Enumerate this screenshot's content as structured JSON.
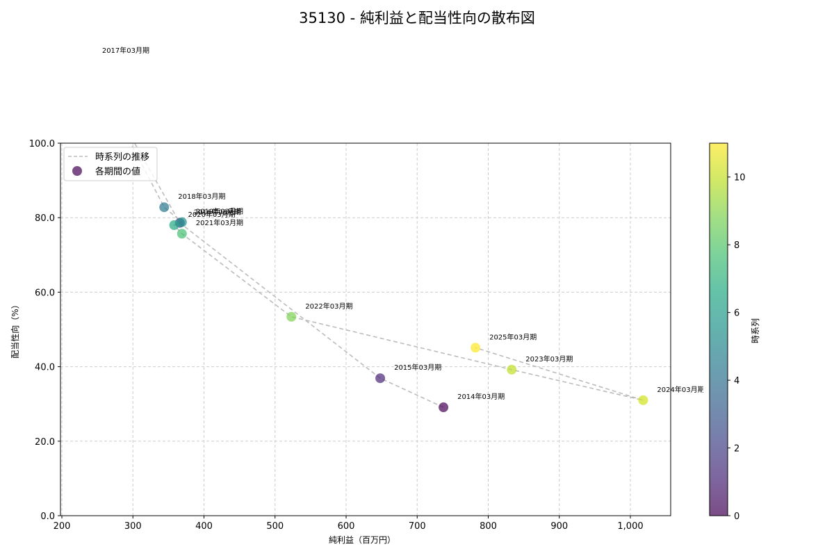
{
  "title": "35130 - 純利益と配当性向の散布図",
  "chart_data": {
    "type": "scatter",
    "title": "35130 - 純利益と配当性向の散布図",
    "xlabel": "純利益（百万円）",
    "ylabel": "配当性向（%）",
    "xlim": [
      198,
      1055
    ],
    "ylim": [
      0,
      100
    ],
    "xticks": [
      "200",
      "300",
      "400",
      "500",
      "600",
      "700",
      "800",
      "900",
      "1,000"
    ],
    "yticks": [
      "0.0",
      "20.0",
      "40.0",
      "60.0",
      "80.0",
      "100.0"
    ],
    "grid": true,
    "legend": {
      "position": "upper left",
      "entries": [
        "時系列の推移",
        "各期間の値"
      ]
    },
    "colorbar": {
      "label": "時系列",
      "ticks": [
        "0",
        "2",
        "4",
        "6",
        "8",
        "10"
      ],
      "range": [
        0,
        11
      ],
      "colormap": "viridis"
    },
    "points": [
      {
        "label": "2014年03月期",
        "x": 737,
        "y": 29.1,
        "t": 0
      },
      {
        "label": "2015年03月期",
        "x": 648,
        "y": 36.9,
        "t": 1
      },
      {
        "label": "2016年03月期",
        "x": 366,
        "y": 78.6,
        "t": 2
      },
      {
        "label": "2017年03月期",
        "x": 237,
        "y": 122.0,
        "t": 3
      },
      {
        "label": "2018年03月期",
        "x": 344,
        "y": 82.8,
        "t": 4
      },
      {
        "label": "2019年03月期",
        "x": 369,
        "y": 78.8,
        "t": 5
      },
      {
        "label": "2020年03月期",
        "x": 358,
        "y": 78.0,
        "t": 6
      },
      {
        "label": "2021年03月期",
        "x": 369,
        "y": 75.7,
        "t": 7
      },
      {
        "label": "2022年03月期",
        "x": 523,
        "y": 53.4,
        "t": 8
      },
      {
        "label": "2023年03月期",
        "x": 833,
        "y": 39.2,
        "t": 9
      },
      {
        "label": "2024年03月期",
        "x": 1018,
        "y": 31.0,
        "t": 10
      },
      {
        "label": "2025年03月期",
        "x": 782,
        "y": 45.1,
        "t": 11
      }
    ]
  },
  "colors": {
    "line": "#bbbbbb",
    "grid": "#cccccc",
    "viridis": [
      "#440154",
      "#482576",
      "#414487",
      "#35608d",
      "#2a788e",
      "#21918c",
      "#22a884",
      "#44bf70",
      "#7ad151",
      "#bddf26",
      "#d2e21b",
      "#fde725"
    ]
  }
}
